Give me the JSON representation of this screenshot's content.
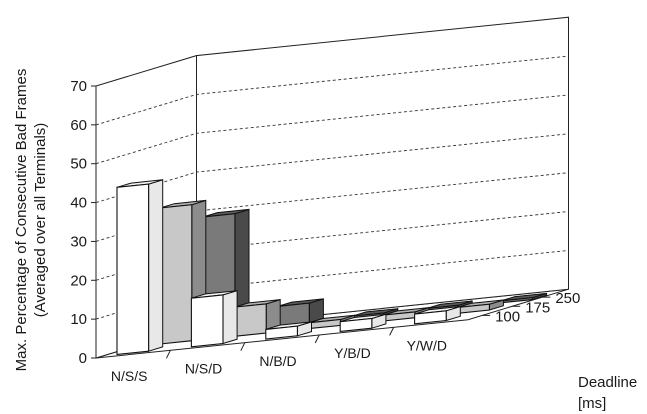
{
  "chart_data": {
    "type": "bar",
    "variant": "3d-grouped",
    "title": "",
    "ylabel": [
      "Max. Percentage of Consecutive Bad Frames",
      "(Averaged over all Terminals)"
    ],
    "xlabel": "",
    "depth_label": [
      "Deadline",
      "[ms]"
    ],
    "ylim": [
      0,
      70
    ],
    "yticks": [
      "0",
      "10",
      "20",
      "30",
      "40",
      "50",
      "60",
      "70"
    ],
    "categories": [
      "N/S/S",
      "N/S/D",
      "N/B/D",
      "Y/B/D",
      "Y/W/D"
    ],
    "series": [
      {
        "name": "100",
        "color": "#ffffff",
        "values": [
          43,
          12.5,
          2.5,
          2.5,
          2.5
        ]
      },
      {
        "name": "175",
        "color": "#c8c8c8",
        "values": [
          35,
          7.5,
          1.5,
          1.5,
          1.5
        ]
      },
      {
        "name": "250",
        "color": "#7a7a7a",
        "values": [
          30,
          5,
          0.5,
          0.5,
          0.5
        ]
      }
    ],
    "grid": true,
    "gridlines": "dashed"
  }
}
